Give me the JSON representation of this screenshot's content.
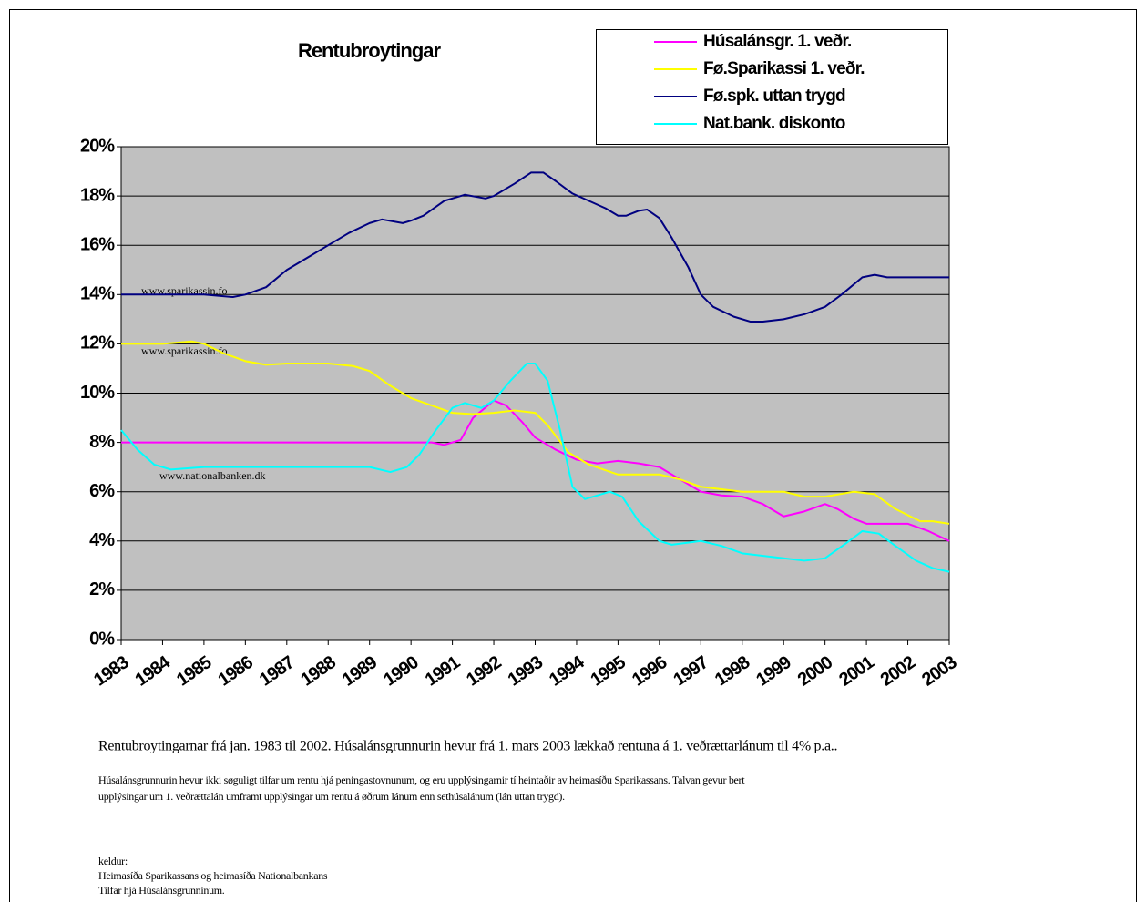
{
  "chart_data": {
    "type": "line",
    "title": "Rentubroytingar",
    "xlim": [
      1983,
      2003
    ],
    "xticks": [
      1983,
      1984,
      1985,
      1986,
      1987,
      1988,
      1989,
      1990,
      1991,
      1992,
      1993,
      1994,
      1995,
      1996,
      1997,
      1998,
      1999,
      2000,
      2001,
      2002,
      2003
    ],
    "ylim": [
      0,
      20
    ],
    "yticks": [
      {
        "value": 0,
        "label": "0%"
      },
      {
        "value": 2,
        "label": "2%"
      },
      {
        "value": 4,
        "label": "4%"
      },
      {
        "value": 6,
        "label": "6%"
      },
      {
        "value": 8,
        "label": "8%"
      },
      {
        "value": 10,
        "label": "10%"
      },
      {
        "value": 12,
        "label": "12%"
      },
      {
        "value": 14,
        "label": "14%"
      },
      {
        "value": 16,
        "label": "16%"
      },
      {
        "value": 18,
        "label": "18%"
      },
      {
        "value": 20,
        "label": "20%"
      }
    ],
    "grid": true,
    "legend": "top-right",
    "series": [
      {
        "name": "Húsalánsgr. 1. veðr.",
        "color": "#ff00ff",
        "x": [
          1983,
          1990.5,
          1990.8,
          1991.2,
          1991.5,
          1992,
          1992.3,
          1992.7,
          1993,
          1993.5,
          1994,
          1994.5,
          1995,
          1995.5,
          1996,
          1996.5,
          1997,
          1997.5,
          1998,
          1998.5,
          1999,
          1999.5,
          2000,
          2000.3,
          2000.7,
          2001,
          2002,
          2002.5,
          2003
        ],
        "values": [
          8,
          8,
          7.9,
          8.1,
          9.0,
          9.7,
          9.5,
          8.8,
          8.2,
          7.7,
          7.3,
          7.15,
          7.25,
          7.15,
          7.0,
          6.5,
          6.0,
          5.85,
          5.8,
          5.5,
          5.0,
          5.2,
          5.5,
          5.3,
          4.9,
          4.7,
          4.7,
          4.4,
          4.0
        ]
      },
      {
        "name": "Fø.Sparikassi 1. veðr.",
        "color": "#ffff00",
        "x": [
          1983,
          1984,
          1984.7,
          1985,
          1985.5,
          1986,
          1986.5,
          1987,
          1988,
          1988.6,
          1989,
          1989.5,
          1990,
          1990.5,
          1991,
          1991.5,
          1992,
          1992.5,
          1993,
          1993.3,
          1993.8,
          1994.3,
          1995,
          1996,
          1996.5,
          1997,
          1998,
          1999,
          1999.5,
          2000,
          2000.7,
          2001.2,
          2001.7,
          2002.3,
          2002.6,
          2003
        ],
        "values": [
          12,
          12,
          12.1,
          12.0,
          11.6,
          11.3,
          11.15,
          11.2,
          11.2,
          11.1,
          10.9,
          10.3,
          9.8,
          9.5,
          9.2,
          9.15,
          9.2,
          9.3,
          9.2,
          8.7,
          7.6,
          7.1,
          6.7,
          6.7,
          6.5,
          6.2,
          6.0,
          6.0,
          5.8,
          5.8,
          6.0,
          5.9,
          5.3,
          4.8,
          4.8,
          4.7
        ]
      },
      {
        "name": "Fø.spk. uttan trygd",
        "color": "#000080",
        "x": [
          1983,
          1985,
          1985.7,
          1986,
          1986.5,
          1987,
          1987.5,
          1988,
          1988.5,
          1989,
          1989.3,
          1989.8,
          1990,
          1990.3,
          1990.8,
          1991.3,
          1991.8,
          1992,
          1992.5,
          1992.9,
          1993.2,
          1993.5,
          1993.9,
          1994.3,
          1994.7,
          1995,
          1995.2,
          1995.5,
          1995.7,
          1996,
          1996.3,
          1996.7,
          1997,
          1997.3,
          1997.8,
          1998.2,
          1998.5,
          1999,
          1999.5,
          2000,
          2000.4,
          2000.9,
          2001.2,
          2001.5,
          2003
        ],
        "values": [
          14,
          14,
          13.9,
          14.0,
          14.3,
          15.0,
          15.5,
          16.0,
          16.5,
          16.9,
          17.05,
          16.9,
          17.0,
          17.2,
          17.8,
          18.05,
          17.9,
          18.0,
          18.5,
          18.95,
          18.95,
          18.6,
          18.1,
          17.8,
          17.5,
          17.2,
          17.2,
          17.4,
          17.45,
          17.1,
          16.3,
          15.1,
          14.0,
          13.5,
          13.1,
          12.9,
          12.9,
          13.0,
          13.2,
          13.5,
          14.0,
          14.7,
          14.8,
          14.7,
          14.7
        ]
      },
      {
        "name": "Nat.bank. diskonto",
        "color": "#00ffff",
        "x": [
          1983,
          1983.4,
          1983.8,
          1984.2,
          1985,
          1989,
          1989.5,
          1989.9,
          1990.2,
          1990.6,
          1991,
          1991.3,
          1991.7,
          1992,
          1992.4,
          1992.8,
          1993,
          1993.3,
          1993.6,
          1993.9,
          1994.2,
          1994.8,
          1995.1,
          1995.5,
          1996,
          1996.3,
          1997,
          1997.5,
          1998,
          1999,
          1999.5,
          2000,
          2000.5,
          2000.9,
          2001.3,
          2001.7,
          2002.2,
          2002.6,
          2003
        ],
        "values": [
          8.5,
          7.7,
          7.1,
          6.9,
          7.0,
          7.0,
          6.8,
          7.0,
          7.5,
          8.5,
          9.4,
          9.6,
          9.4,
          9.7,
          10.5,
          11.2,
          11.2,
          10.5,
          8.5,
          6.2,
          5.7,
          6.0,
          5.8,
          4.8,
          4.0,
          3.85,
          4.0,
          3.8,
          3.5,
          3.3,
          3.2,
          3.3,
          3.9,
          4.4,
          4.3,
          3.8,
          3.2,
          2.9,
          2.75
        ]
      }
    ],
    "annotations": [
      "www.sparikassin.fo",
      "www.sparikassin.fo",
      "www.nationalbanken.dk"
    ],
    "notes": [
      "Rentubroytingarnar frá jan. 1983 til 2002. Húsalánsgrunnurin hevur frá 1. mars 2003 lækkað rentuna á 1. veðrættarlánum til 4% p.a..",
      "Húsalánsgrunnurin hevur ikki søguligt tilfar um rentu hjá peningastovnunum, og eru upplýsingarnir tí heintaðir av heimasíðu Sparikassans. Talvan gevur bert",
      "upplýsingar um 1. veðrættalán umframt upplýsingar um rentu á øðrum lánum enn sethúsalánum (lán uttan trygd).",
      "keldur:",
      "Heimasíða Sparikassans og heimasíða Nationalbankans",
      "Tilfar hjá Húsalánsgrunninum."
    ]
  }
}
